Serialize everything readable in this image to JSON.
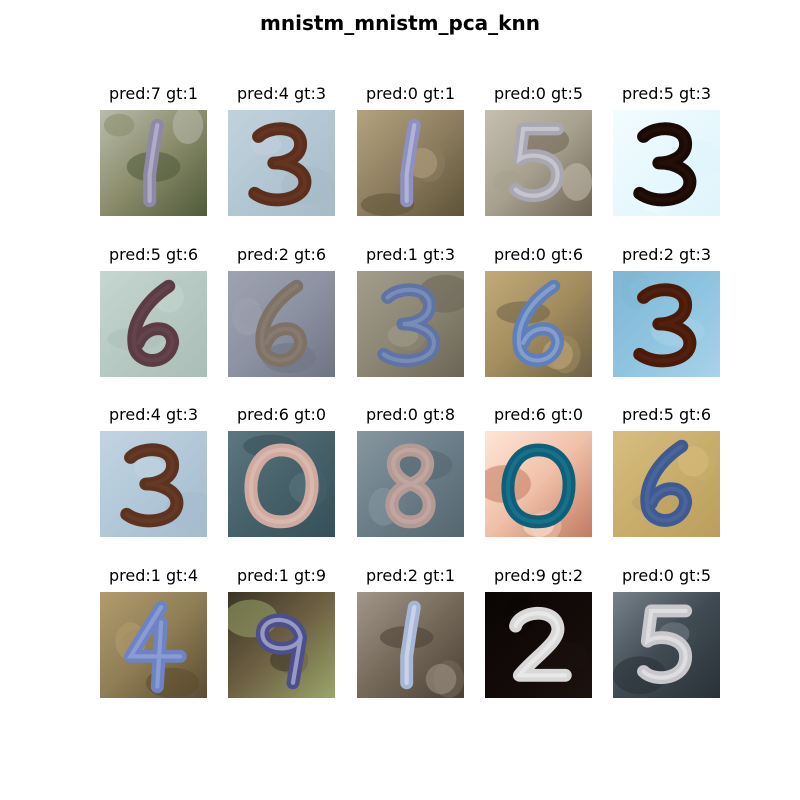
{
  "title": "mnistm_mnistm_pca_knn",
  "samples": [
    {
      "caption": "pred:7 gt:1",
      "digit": "1",
      "bg": [
        "#8a8c6a",
        "#4f5a3a",
        "#b9bcae"
      ],
      "ink": "#8e8aa6",
      "ink2": "#c7c3de"
    },
    {
      "caption": "pred:4 gt:3",
      "digit": "3",
      "bg": [
        "#b2c7d3",
        "#a6bac7",
        "#c2d2dc"
      ],
      "ink": "#5b2f1e",
      "ink2": "#6d3a25"
    },
    {
      "caption": "pred:0 gt:1",
      "digit": "1",
      "bg": [
        "#8d7e5f",
        "#5e5338",
        "#b3a37f"
      ],
      "ink": "#8d90c0",
      "ink2": "#c8cae6"
    },
    {
      "caption": "pred:0 gt:5",
      "digit": "5",
      "bg": [
        "#a7a08f",
        "#6d6253",
        "#c5bfb0"
      ],
      "ink": "#a9a8b2",
      "ink2": "#dad9e0"
    },
    {
      "caption": "pred:5 gt:3",
      "digit": "3",
      "bg": [
        "#e7f8fd",
        "#dff4fb",
        "#f2fcff"
      ],
      "ink": "#1a0a05",
      "ink2": "#2b120a"
    },
    {
      "caption": "pred:5 gt:6",
      "digit": "6",
      "bg": [
        "#b7c9c3",
        "#aabdb7",
        "#c6d6d0"
      ],
      "ink": "#5b3c44",
      "ink2": "#6b4a52"
    },
    {
      "caption": "pred:2 gt:6",
      "digit": "6",
      "bg": [
        "#8c92a2",
        "#6e7483",
        "#9ea3b0"
      ],
      "ink": "#7e7166",
      "ink2": "#8e8176"
    },
    {
      "caption": "pred:1 gt:3",
      "digit": "3",
      "bg": [
        "#8c8674",
        "#6b6556",
        "#a39d8c"
      ],
      "ink": "#5f74a3",
      "ink2": "#8a9cc8"
    },
    {
      "caption": "pred:0 gt:6",
      "digit": "6",
      "bg": [
        "#a38d5e",
        "#6d6045",
        "#c2ab78"
      ],
      "ink": "#5f7fb8",
      "ink2": "#9ab0dc"
    },
    {
      "caption": "pred:2 gt:3",
      "digit": "3",
      "bg": [
        "#8ec4e0",
        "#a8d2ea",
        "#7fb6d3"
      ],
      "ink": "#4a1a08",
      "ink2": "#5a2410"
    },
    {
      "caption": "pred:4 gt:3",
      "digit": "3",
      "bg": [
        "#b2c8d8",
        "#a4bccd",
        "#c1d4e2"
      ],
      "ink": "#5c3320",
      "ink2": "#6c3e29"
    },
    {
      "caption": "pred:6 gt:0",
      "digit": "0",
      "bg": [
        "#47616a",
        "#36505a",
        "#5c7780"
      ],
      "ink": "#cfaaa0",
      "ink2": "#e2c2b8"
    },
    {
      "caption": "pred:0 gt:8",
      "digit": "8",
      "bg": [
        "#6b7d88",
        "#55666f",
        "#8797a0"
      ],
      "ink": "#b49a94",
      "ink2": "#c8aea8"
    },
    {
      "caption": "pred:6 gt:0",
      "digit": "0",
      "bg": [
        "#f0c0a8",
        "#c27a62",
        "#ffe6d6"
      ],
      "ink": "#0e5f78",
      "ink2": "#1e7d98"
    },
    {
      "caption": "pred:5 gt:6",
      "digit": "6",
      "bg": [
        "#c9ad6c",
        "#bb9e5c",
        "#d8be80"
      ],
      "ink": "#3f5a92",
      "ink2": "#526ca4"
    },
    {
      "caption": "pred:1 gt:4",
      "digit": "4",
      "bg": [
        "#8f7d55",
        "#5b4c30",
        "#b29c6c"
      ],
      "ink": "#6f82c2",
      "ink2": "#9daee0"
    },
    {
      "caption": "pred:1 gt:9",
      "digit": "9",
      "bg": [
        "#6e6144",
        "#9aa66a",
        "#3c3424"
      ],
      "ink": "#4c4f8c",
      "ink2": "#c8cbe8"
    },
    {
      "caption": "pred:2 gt:1",
      "digit": "1",
      "bg": [
        "#75695a",
        "#4a4034",
        "#a2968a"
      ],
      "ink": "#a8b6d6",
      "ink2": "#dfe6f4"
    },
    {
      "caption": "pred:9 gt:2",
      "digit": "2",
      "bg": [
        "#120a08",
        "#1c120e",
        "#0a0504"
      ],
      "ink": "#d8d8d8",
      "ink2": "#f4f4f4"
    },
    {
      "caption": "pred:0 gt:5",
      "digit": "5",
      "bg": [
        "#3f4a52",
        "#2a3238",
        "#77828a"
      ],
      "ink": "#c8c8cc",
      "ink2": "#ececee"
    }
  ]
}
